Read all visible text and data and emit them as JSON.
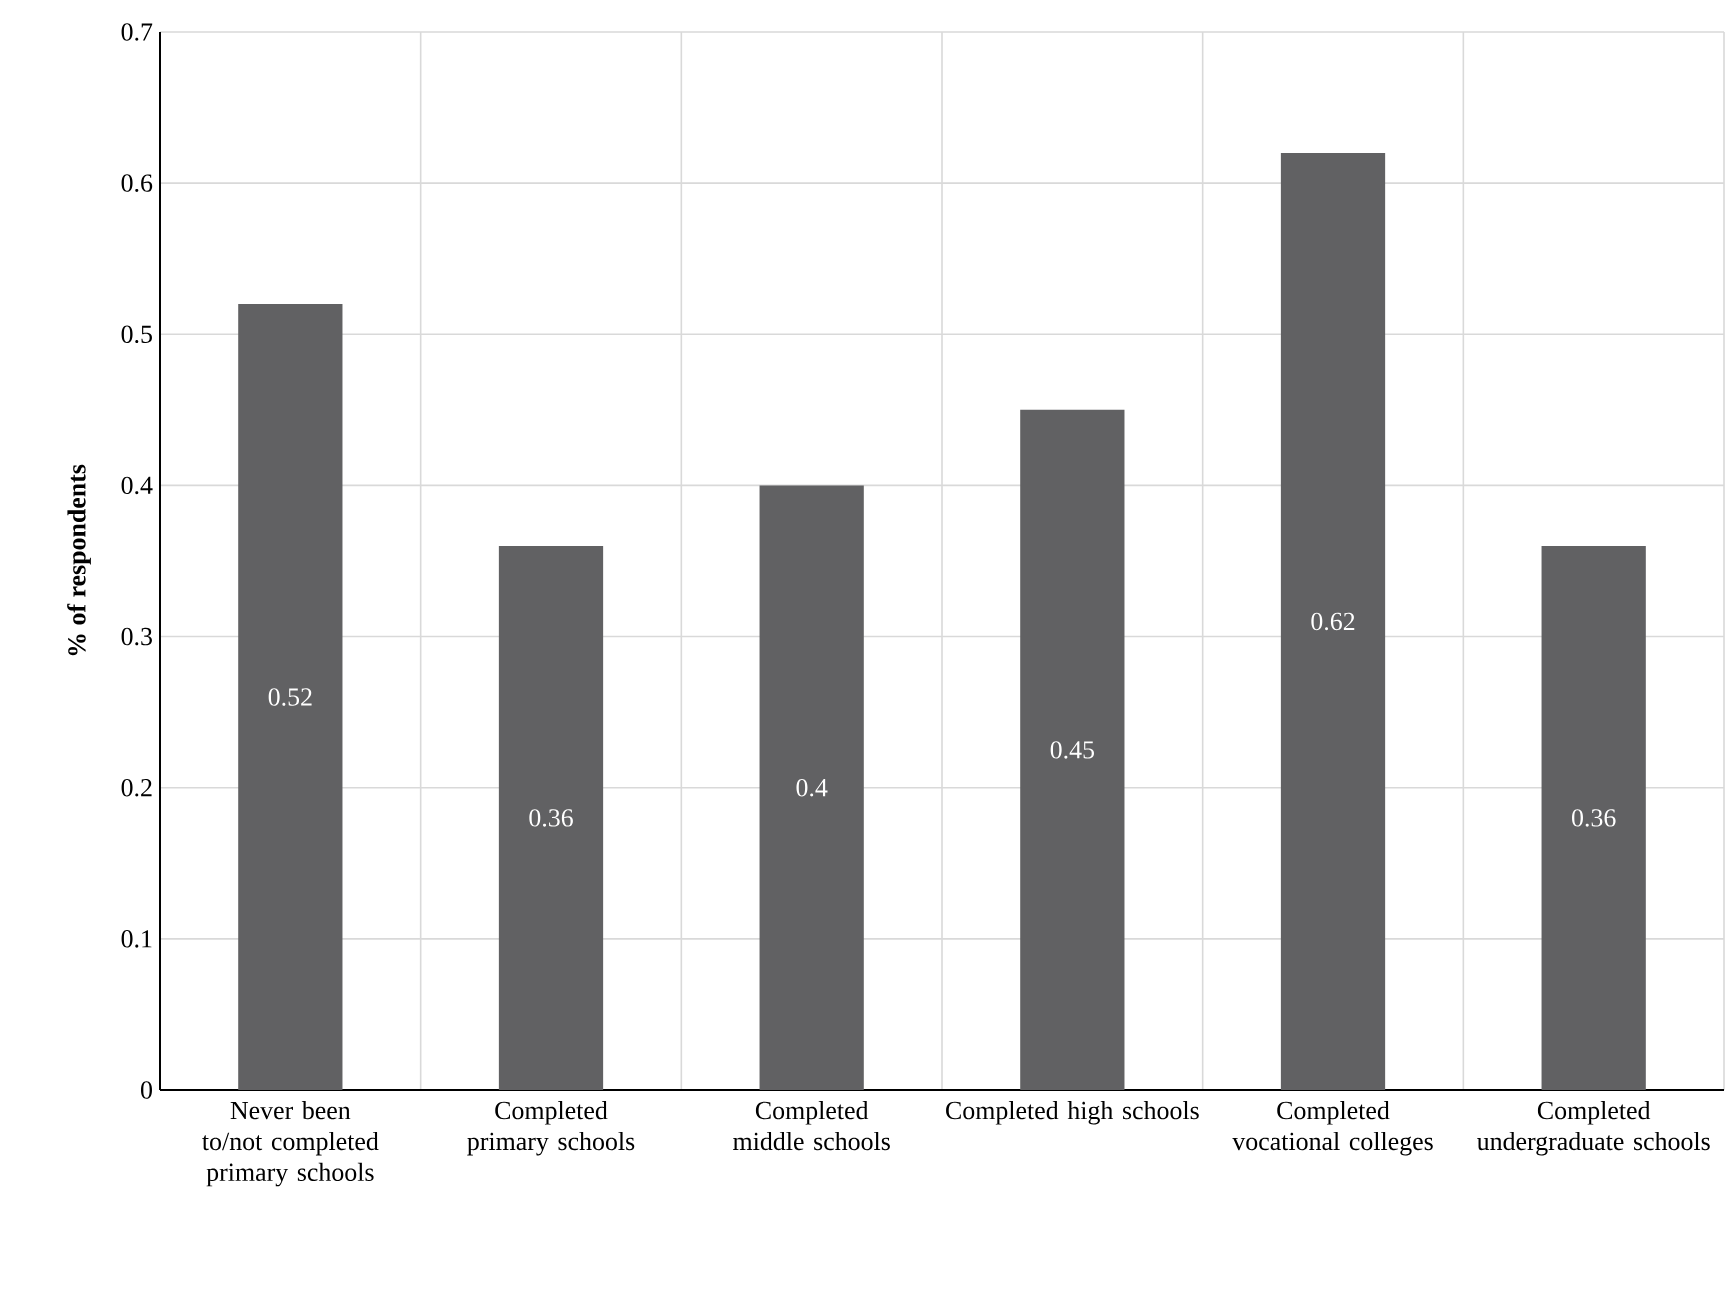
{
  "chart_data": {
    "type": "bar",
    "ylabel": "% of respondents",
    "categories": [
      "Never been to/not completed primary schools",
      "Completed primary schools",
      "Completed middle schools",
      "Completed high schools",
      "Completed vocational colleges",
      "Completed undergraduate schools"
    ],
    "values": [
      0.52,
      0.36,
      0.4,
      0.45,
      0.62,
      0.36
    ],
    "color": "#616163",
    "ylim": [
      0,
      0.7
    ],
    "yticks": [
      0,
      0.1,
      0.2,
      0.3,
      0.4,
      0.5,
      0.6,
      0.7
    ],
    "grid": true,
    "data_labels": true
  }
}
